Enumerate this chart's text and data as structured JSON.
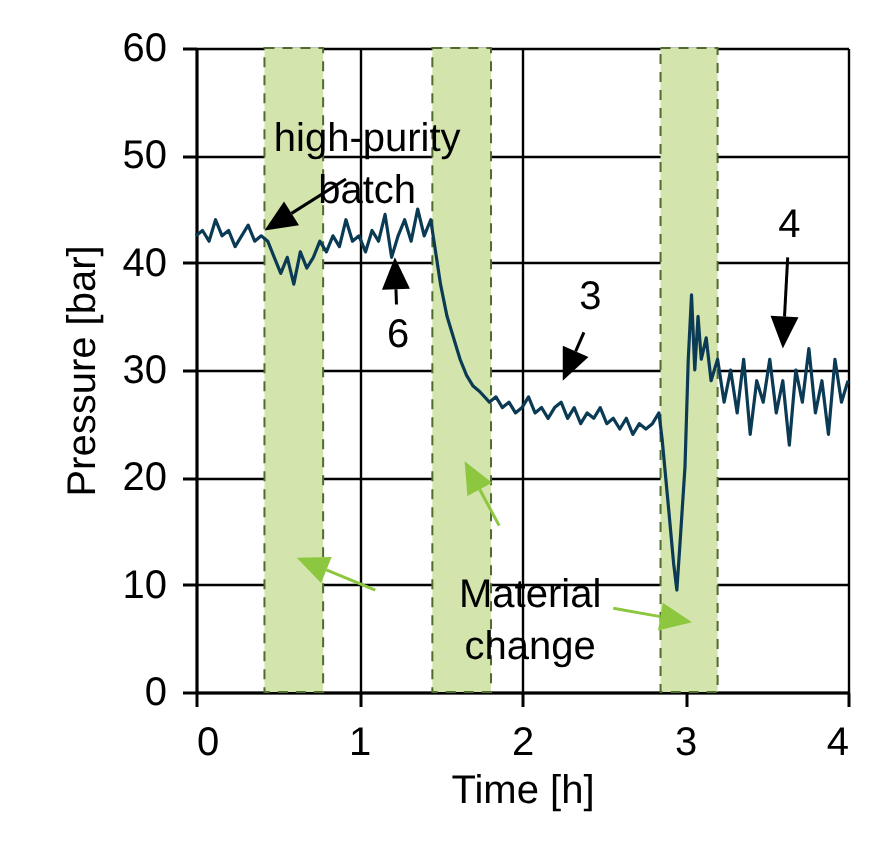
{
  "chart_data": {
    "type": "line",
    "xlabel": "Time [h]",
    "ylabel": "Pressure [bar]",
    "xlim": [
      0,
      4
    ],
    "xticks": [
      0,
      1,
      2,
      3,
      4
    ],
    "ylim": [
      0,
      60
    ],
    "yticks": [
      0,
      10,
      20,
      30,
      40,
      50,
      60
    ],
    "grid": true,
    "x": [
      0,
      0.04,
      0.08,
      0.12,
      0.16,
      0.2,
      0.24,
      0.28,
      0.32,
      0.36,
      0.4,
      0.44,
      0.48,
      0.52,
      0.56,
      0.6,
      0.64,
      0.68,
      0.72,
      0.76,
      0.8,
      0.84,
      0.88,
      0.92,
      0.96,
      1.0,
      1.04,
      1.08,
      1.12,
      1.16,
      1.2,
      1.24,
      1.28,
      1.32,
      1.36,
      1.4,
      1.44,
      1.46,
      1.5,
      1.54,
      1.58,
      1.62,
      1.66,
      1.7,
      1.74,
      1.8,
      1.84,
      1.88,
      1.92,
      1.96,
      2.0,
      2.04,
      2.08,
      2.12,
      2.16,
      2.2,
      2.24,
      2.28,
      2.32,
      2.36,
      2.4,
      2.44,
      2.48,
      2.52,
      2.56,
      2.6,
      2.64,
      2.68,
      2.72,
      2.76,
      2.8,
      2.84,
      2.86,
      2.9,
      2.93,
      2.95,
      2.97,
      3.0,
      3.02,
      3.04,
      3.06,
      3.08,
      3.1,
      3.13,
      3.16,
      3.2,
      3.24,
      3.28,
      3.32,
      3.36,
      3.4,
      3.44,
      3.48,
      3.52,
      3.56,
      3.6,
      3.64,
      3.68,
      3.72,
      3.76,
      3.8,
      3.84,
      3.88,
      3.92,
      3.96,
      4.0
    ],
    "series": [
      {
        "color": "#0b3a55",
        "values": [
          42.5,
          43,
          42,
          44,
          42.5,
          43,
          41.5,
          42.5,
          43.5,
          42,
          42.5,
          42,
          40.5,
          39,
          40.5,
          38,
          41,
          39.5,
          40.5,
          42,
          41,
          42.5,
          41.5,
          44,
          42,
          42.5,
          41,
          43,
          42,
          44.5,
          40.5,
          42.5,
          44,
          42,
          45,
          42.5,
          44,
          42,
          38,
          35,
          33,
          31,
          29.5,
          28.5,
          28,
          27,
          27.5,
          26.5,
          27,
          26,
          26.5,
          27.5,
          26,
          26.5,
          25.5,
          26.5,
          27,
          25.5,
          26.5,
          25,
          26,
          25.5,
          26.5,
          25,
          25.5,
          24.5,
          25.5,
          24,
          25,
          24.5,
          25,
          26,
          23.5,
          17,
          12,
          9.5,
          14,
          21,
          31,
          37,
          30,
          35,
          31,
          33,
          29,
          31,
          27,
          30,
          26,
          31,
          24,
          29,
          27,
          31,
          26,
          29,
          23,
          30,
          27,
          32,
          26,
          29,
          24,
          31,
          27,
          29
        ]
      }
    ],
    "bands": [
      {
        "axis": "x",
        "from": 0.42,
        "to": 0.78,
        "color": "#d3e5ad"
      },
      {
        "axis": "x",
        "from": 1.45,
        "to": 1.81,
        "color": "#d3e5ad"
      },
      {
        "axis": "x",
        "from": 2.85,
        "to": 3.2,
        "color": "#d3e5ad"
      }
    ],
    "annotations": [
      {
        "text": "high-purity batch",
        "x": 0.42,
        "y": 43
      },
      {
        "text": "6",
        "x": 1.22,
        "y": 40.5
      },
      "3",
      "4",
      "Material change"
    ]
  }
}
